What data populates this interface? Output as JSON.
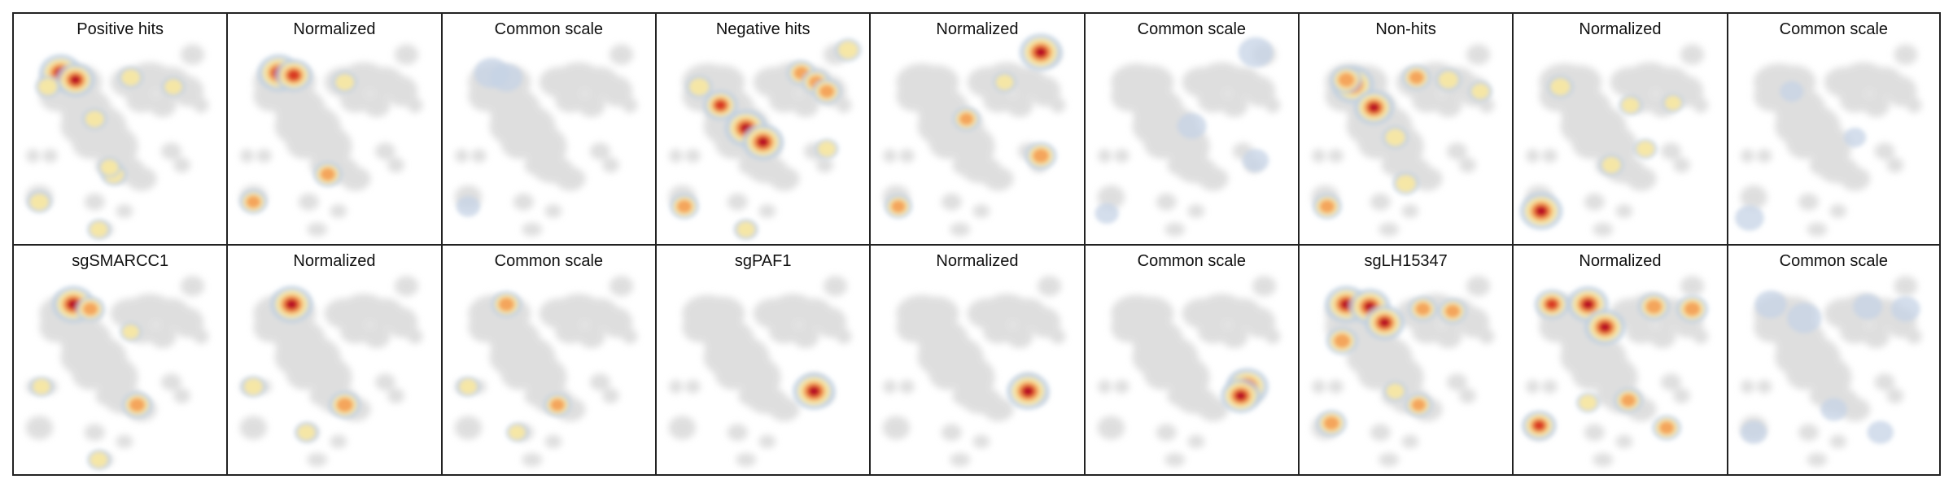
{
  "chart_data": {
    "type": "density",
    "rows": 2,
    "cols": 9,
    "base_color": "#d9d9d9",
    "palettes": {
      "density": [
        "#bfd0e0",
        "#fbe9a0",
        "#f4a056",
        "#d7301f",
        "#b10026"
      ],
      "common": [
        "#c5d3e6",
        "#7f9fd3",
        "#4f73b9"
      ]
    },
    "panels": [
      {
        "title": "Positive hits",
        "mode": "density",
        "peaks": [
          [
            0.22,
            0.22,
            1.0
          ],
          [
            0.29,
            0.25,
            0.85
          ],
          [
            0.16,
            0.28,
            0.35
          ],
          [
            0.38,
            0.42,
            0.35
          ],
          [
            0.55,
            0.24,
            0.35
          ],
          [
            0.75,
            0.28,
            0.3
          ],
          [
            0.12,
            0.78,
            0.35
          ],
          [
            0.47,
            0.66,
            0.4
          ],
          [
            0.45,
            0.63,
            0.3
          ],
          [
            0.4,
            0.9,
            0.3
          ]
        ]
      },
      {
        "title": "Normalized",
        "mode": "density",
        "peaks": [
          [
            0.24,
            0.22,
            1.0
          ],
          [
            0.31,
            0.23,
            0.8
          ],
          [
            0.12,
            0.78,
            0.45
          ],
          [
            0.47,
            0.66,
            0.5
          ],
          [
            0.55,
            0.26,
            0.35
          ]
        ]
      },
      {
        "title": "Common scale",
        "mode": "common",
        "peaks": [
          [
            0.23,
            0.22,
            0.7
          ],
          [
            0.3,
            0.24,
            0.6
          ],
          [
            0.12,
            0.8,
            0.3
          ]
        ]
      },
      {
        "title": "Negative hits",
        "mode": "density",
        "peaks": [
          [
            0.42,
            0.46,
            1.0
          ],
          [
            0.5,
            0.52,
            0.95
          ],
          [
            0.3,
            0.36,
            0.7
          ],
          [
            0.2,
            0.28,
            0.4
          ],
          [
            0.68,
            0.22,
            0.5
          ],
          [
            0.75,
            0.26,
            0.5
          ],
          [
            0.8,
            0.3,
            0.5
          ],
          [
            0.9,
            0.12,
            0.4
          ],
          [
            0.13,
            0.8,
            0.5
          ],
          [
            0.42,
            0.9,
            0.3
          ],
          [
            0.8,
            0.55,
            0.3
          ]
        ]
      },
      {
        "title": "Normalized",
        "mode": "density",
        "peaks": [
          [
            0.8,
            0.13,
            1.0
          ],
          [
            0.45,
            0.42,
            0.45
          ],
          [
            0.8,
            0.58,
            0.6
          ],
          [
            0.13,
            0.8,
            0.45
          ],
          [
            0.63,
            0.26,
            0.3
          ]
        ]
      },
      {
        "title": "Common scale",
        "mode": "common",
        "peaks": [
          [
            0.8,
            0.13,
            0.7
          ],
          [
            0.5,
            0.45,
            0.5
          ],
          [
            0.8,
            0.6,
            0.4
          ],
          [
            0.1,
            0.83,
            0.3
          ]
        ]
      },
      {
        "title": "Non-hits",
        "mode": "density",
        "peaks": [
          [
            0.25,
            0.27,
            1.0
          ],
          [
            0.35,
            0.37,
            0.9
          ],
          [
            0.22,
            0.25,
            0.6
          ],
          [
            0.55,
            0.24,
            0.5
          ],
          [
            0.7,
            0.25,
            0.4
          ],
          [
            0.45,
            0.5,
            0.4
          ],
          [
            0.13,
            0.8,
            0.5
          ],
          [
            0.5,
            0.7,
            0.4
          ],
          [
            0.85,
            0.3,
            0.3
          ]
        ]
      },
      {
        "title": "Normalized",
        "mode": "density",
        "peaks": [
          [
            0.13,
            0.82,
            1.0
          ],
          [
            0.22,
            0.28,
            0.4
          ],
          [
            0.46,
            0.62,
            0.35
          ],
          [
            0.55,
            0.36,
            0.3
          ],
          [
            0.62,
            0.55,
            0.3
          ],
          [
            0.75,
            0.35,
            0.25
          ]
        ]
      },
      {
        "title": "Common scale",
        "mode": "common",
        "peaks": [
          [
            0.1,
            0.85,
            0.5
          ],
          [
            0.3,
            0.3,
            0.3
          ],
          [
            0.6,
            0.5,
            0.25
          ]
        ]
      },
      {
        "title": "sgSMARCC1",
        "mode": "density",
        "peaks": [
          [
            0.28,
            0.22,
            1.0
          ],
          [
            0.36,
            0.24,
            0.5
          ],
          [
            0.58,
            0.66,
            0.55
          ],
          [
            0.13,
            0.58,
            0.3
          ],
          [
            0.55,
            0.34,
            0.25
          ],
          [
            0.4,
            0.9,
            0.3
          ]
        ]
      },
      {
        "title": "Normalized",
        "mode": "density",
        "peaks": [
          [
            0.3,
            0.22,
            1.0
          ],
          [
            0.55,
            0.66,
            0.6
          ],
          [
            0.12,
            0.58,
            0.35
          ],
          [
            0.37,
            0.78,
            0.3
          ]
        ]
      },
      {
        "title": "Common scale",
        "mode": "density",
        "peaks": [
          [
            0.3,
            0.22,
            0.55
          ],
          [
            0.54,
            0.66,
            0.45
          ],
          [
            0.12,
            0.58,
            0.3
          ],
          [
            0.35,
            0.78,
            0.25
          ]
        ]
      },
      {
        "title": "sgPAF1",
        "mode": "density",
        "peaks": [
          [
            0.74,
            0.6,
            1.0
          ]
        ]
      },
      {
        "title": "Normalized",
        "mode": "density",
        "peaks": [
          [
            0.74,
            0.6,
            1.0
          ]
        ]
      },
      {
        "title": "Common scale",
        "mode": "density",
        "peaks": [
          [
            0.76,
            0.58,
            1.0
          ],
          [
            0.73,
            0.62,
            0.9
          ]
        ]
      },
      {
        "title": "sgLH15347",
        "mode": "density",
        "peaks": [
          [
            0.22,
            0.22,
            1.0
          ],
          [
            0.33,
            0.23,
            0.95
          ],
          [
            0.4,
            0.3,
            0.9
          ],
          [
            0.2,
            0.38,
            0.6
          ],
          [
            0.58,
            0.24,
            0.5
          ],
          [
            0.72,
            0.25,
            0.5
          ],
          [
            0.15,
            0.74,
            0.55
          ],
          [
            0.56,
            0.66,
            0.45
          ],
          [
            0.45,
            0.6,
            0.3
          ]
        ]
      },
      {
        "title": "Normalized",
        "mode": "density",
        "peaks": [
          [
            0.18,
            0.22,
            0.7
          ],
          [
            0.35,
            0.22,
            0.95
          ],
          [
            0.43,
            0.32,
            0.95
          ],
          [
            0.66,
            0.23,
            0.6
          ],
          [
            0.84,
            0.24,
            0.6
          ],
          [
            0.12,
            0.75,
            0.7
          ],
          [
            0.54,
            0.64,
            0.5
          ],
          [
            0.72,
            0.76,
            0.5
          ],
          [
            0.35,
            0.65,
            0.3
          ]
        ]
      },
      {
        "title": "Common scale",
        "mode": "common",
        "peaks": [
          [
            0.2,
            0.22,
            0.6
          ],
          [
            0.36,
            0.28,
            0.7
          ],
          [
            0.66,
            0.23,
            0.5
          ],
          [
            0.84,
            0.24,
            0.5
          ],
          [
            0.12,
            0.78,
            0.4
          ],
          [
            0.5,
            0.68,
            0.4
          ],
          [
            0.72,
            0.78,
            0.4
          ]
        ]
      }
    ]
  }
}
